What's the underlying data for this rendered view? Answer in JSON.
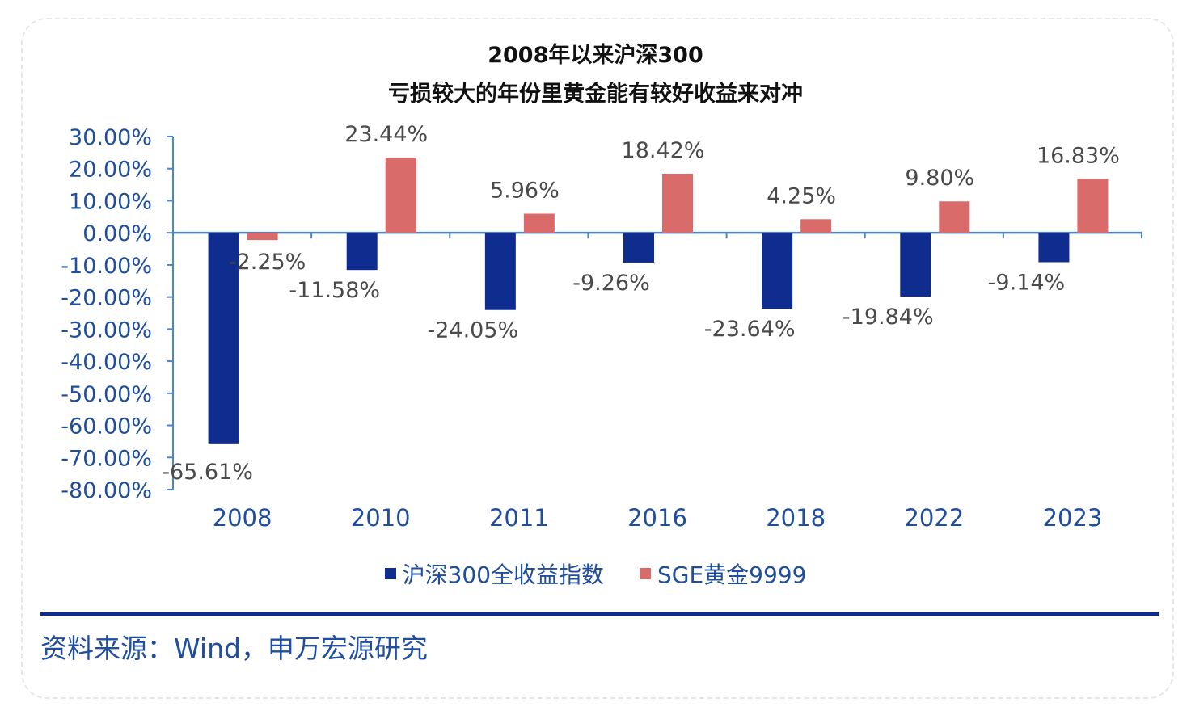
{
  "title_line1": "2008年以来沪深300",
  "title_line2": "亏损较大的年份里黄金能有较好收益来对冲",
  "source": "资料来源：Wind，申万宏源研究",
  "colors": {
    "series1": "#0f2d8f",
    "series2": "#d96b6b",
    "axis": "#4a86c8",
    "tick_text": "#1f4e9e",
    "label_text": "#4a4a4a"
  },
  "chart_data": {
    "type": "bar",
    "categories": [
      "2008",
      "2010",
      "2011",
      "2016",
      "2018",
      "2022",
      "2023"
    ],
    "series": [
      {
        "name": "沪深300全收益指数",
        "values": [
          -65.61,
          -11.58,
          -24.05,
          -9.26,
          -23.64,
          -19.84,
          -9.14
        ],
        "labels": [
          "-65.61%",
          "-11.58%",
          "-24.05%",
          "-9.26%",
          "-23.64%",
          "-19.84%",
          "-9.14%"
        ]
      },
      {
        "name": "SGE黄金9999",
        "values": [
          -2.25,
          23.44,
          5.96,
          18.42,
          4.25,
          9.8,
          16.83
        ],
        "labels": [
          "-2.25%",
          "23.44%",
          "5.96%",
          "18.42%",
          "4.25%",
          "9.80%",
          "16.83%"
        ]
      }
    ],
    "yticks": [
      "30.00%",
      "20.00%",
      "10.00%",
      "0.00%",
      "-10.00%",
      "-20.00%",
      "-30.00%",
      "-40.00%",
      "-50.00%",
      "-60.00%",
      "-70.00%",
      "-80.00%"
    ],
    "ylim": [
      -80,
      30
    ],
    "grid": false,
    "legend_position": "bottom"
  }
}
